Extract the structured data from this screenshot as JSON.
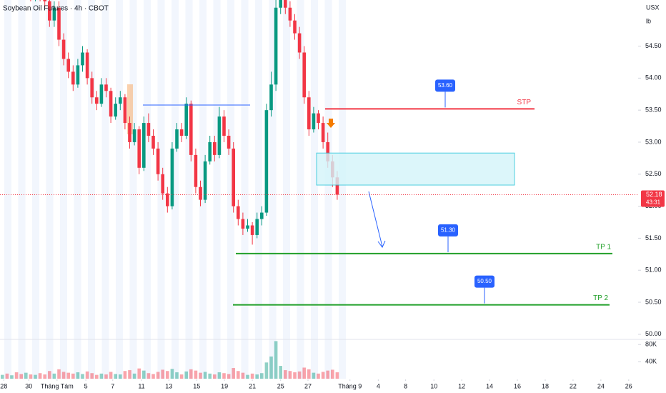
{
  "chart_data": {
    "type": "candlestick",
    "title": "Soybean Oil Futures · 4h · CBOT",
    "currency": "USX",
    "unit": "lb",
    "up_color": "#089981",
    "down_color": "#f23645",
    "open": [
      55.5,
      55.6,
      55.5,
      55.7,
      55.6,
      55.4,
      55.5,
      55.3,
      55.4,
      55.3,
      55.2,
      54.9,
      55.1,
      54.6,
      54.3,
      54.1,
      53.9,
      54.2,
      54.4,
      54.0,
      53.7,
      53.6,
      53.9,
      53.8,
      53.4,
      53.6,
      53.7,
      53.3,
      53.0,
      53.2,
      52.6,
      53.3,
      53.1,
      52.9,
      52.5,
      52.2,
      52.0,
      52.9,
      53.2,
      53.1,
      53.6,
      52.8,
      52.3,
      52.1,
      52.7,
      53.0,
      52.8,
      53.4,
      53.1,
      52.9,
      52.0,
      51.8,
      51.65,
      51.7,
      51.55,
      51.8,
      51.9,
      53.5,
      53.9,
      55.1,
      55.25,
      55.1,
      54.9,
      54.7,
      54.4,
      53.7,
      53.2,
      53.45,
      53.3,
      53.0,
      52.7,
      52.45
    ],
    "high": [
      55.7,
      55.7,
      55.8,
      55.8,
      55.7,
      55.6,
      55.6,
      55.5,
      55.5,
      55.4,
      55.3,
      55.2,
      55.2,
      54.7,
      54.4,
      54.2,
      54.3,
      54.5,
      54.45,
      54.1,
      53.8,
      54.0,
      54.0,
      53.85,
      53.7,
      53.8,
      53.75,
      53.4,
      53.3,
      53.25,
      53.4,
      53.45,
      53.2,
      53.0,
      52.6,
      52.3,
      53.0,
      53.3,
      53.3,
      53.7,
      53.65,
      52.9,
      52.4,
      52.8,
      53.1,
      53.1,
      53.55,
      53.5,
      53.2,
      53.0,
      52.1,
      51.9,
      51.8,
      51.75,
      51.9,
      52.0,
      53.6,
      54.1,
      55.3,
      55.5,
      55.35,
      55.2,
      55.0,
      54.8,
      54.5,
      53.8,
      53.55,
      53.5,
      53.4,
      53.15,
      52.8,
      52.55
    ],
    "low": [
      55.4,
      55.4,
      55.4,
      55.5,
      55.3,
      55.3,
      55.2,
      55.2,
      55.2,
      55.1,
      54.8,
      54.8,
      54.5,
      54.2,
      54.0,
      53.8,
      53.85,
      54.1,
      53.9,
      53.6,
      53.5,
      53.55,
      53.7,
      53.3,
      53.35,
      53.5,
      53.2,
      52.9,
      52.95,
      52.5,
      52.55,
      53.0,
      52.8,
      52.4,
      52.1,
      51.9,
      51.95,
      52.85,
      53.0,
      53.05,
      52.7,
      52.2,
      52.0,
      52.05,
      52.65,
      52.7,
      52.75,
      53.0,
      52.8,
      51.9,
      51.7,
      51.55,
      51.6,
      51.4,
      51.5,
      51.7,
      51.85,
      53.4,
      53.8,
      55.0,
      55.0,
      54.8,
      54.6,
      54.3,
      53.6,
      53.1,
      53.15,
      53.2,
      52.9,
      52.6,
      52.3,
      52.1
    ],
    "close": [
      55.6,
      55.5,
      55.7,
      55.6,
      55.4,
      55.5,
      55.3,
      55.4,
      55.3,
      55.2,
      54.9,
      55.1,
      54.6,
      54.3,
      54.1,
      53.9,
      54.2,
      54.4,
      54.0,
      53.7,
      53.6,
      53.9,
      53.8,
      53.4,
      53.6,
      53.7,
      53.3,
      53.0,
      53.2,
      52.6,
      53.3,
      53.1,
      52.9,
      52.5,
      52.2,
      52.0,
      52.9,
      53.2,
      53.1,
      53.6,
      52.8,
      52.3,
      52.1,
      52.7,
      53.0,
      52.8,
      53.4,
      53.1,
      52.9,
      52.0,
      51.8,
      51.65,
      51.7,
      51.55,
      51.8,
      51.9,
      53.5,
      53.9,
      55.1,
      55.25,
      55.1,
      54.9,
      54.7,
      54.4,
      53.7,
      53.2,
      53.45,
      53.3,
      53.0,
      52.7,
      52.45,
      52.18
    ],
    "volume": [
      9000,
      12000,
      8000,
      15000,
      11000,
      14000,
      10000,
      9000,
      13000,
      10000,
      18000,
      12000,
      22000,
      16000,
      14000,
      12000,
      15000,
      11000,
      17000,
      13000,
      9000,
      12000,
      10000,
      16000,
      11000,
      10000,
      18000,
      20000,
      12000,
      24000,
      19000,
      13000,
      11000,
      16000,
      21000,
      18000,
      23000,
      15000,
      10000,
      17000,
      22000,
      19000,
      14000,
      16000,
      12000,
      10000,
      15000,
      13000,
      11000,
      25000,
      18000,
      14000,
      9000,
      12000,
      10000,
      13000,
      38000,
      52000,
      88000,
      30000,
      20000,
      18000,
      15000,
      17000,
      26000,
      22000,
      14000,
      12000,
      16000,
      19000,
      21000,
      15000
    ],
    "xlim": [
      0,
      135.3
    ],
    "xticks": [
      {
        "value": 0.8,
        "label": "28"
      },
      {
        "value": 6.1,
        "label": "30"
      },
      {
        "value": 12.1,
        "label": "Tháng Tám"
      },
      {
        "value": 18.2,
        "label": "5"
      },
      {
        "value": 23.9,
        "label": "7"
      },
      {
        "value": 30,
        "label": "11"
      },
      {
        "value": 35.8,
        "label": "13"
      },
      {
        "value": 41.7,
        "label": "15"
      },
      {
        "value": 47.6,
        "label": "19"
      },
      {
        "value": 53.5,
        "label": "21"
      },
      {
        "value": 59.5,
        "label": "25"
      },
      {
        "value": 65.3,
        "label": "27"
      },
      {
        "value": 74.2,
        "label": "Tháng 9"
      },
      {
        "value": 80.2,
        "label": "4"
      },
      {
        "value": 86,
        "label": "8"
      },
      {
        "value": 92,
        "label": "10"
      },
      {
        "value": 97.9,
        "label": "12"
      },
      {
        "value": 103.8,
        "label": "14"
      },
      {
        "value": 109.7,
        "label": "16"
      },
      {
        "value": 115.6,
        "label": "18"
      },
      {
        "value": 121.5,
        "label": "22"
      },
      {
        "value": 127.4,
        "label": "24"
      },
      {
        "value": 133.3,
        "label": "26"
      }
    ],
    "ylim": [
      49.92,
      55.22
    ],
    "yticks": [
      {
        "value": 50,
        "label": "50.00"
      },
      {
        "value": 50.5,
        "label": "50.50"
      },
      {
        "value": 51,
        "label": "51.00"
      },
      {
        "value": 51.5,
        "label": "51.50"
      },
      {
        "value": 52,
        "label": "52.00"
      },
      {
        "value": 52.5,
        "label": "52.50"
      },
      {
        "value": 53,
        "label": "53.00"
      },
      {
        "value": 53.5,
        "label": "53.50"
      },
      {
        "value": 54,
        "label": "54.00"
      },
      {
        "value": 54.5,
        "label": "54.50"
      }
    ],
    "volume_ylim": [
      0,
      92000
    ],
    "volume_yticks": [
      {
        "value": 40000,
        "label": "40K"
      },
      {
        "value": 80000,
        "label": "80K"
      }
    ],
    "last_price": 52.18,
    "countdown": "43:31",
    "resistance": 53.58,
    "zone": [
      52.33,
      52.83
    ],
    "levels": [
      {
        "label": "STP",
        "price": 53.52,
        "callout": "53.60",
        "color": "#f23645"
      },
      {
        "label": "TP 1",
        "price": 51.26,
        "callout": "51.30",
        "color": "#22a02a"
      },
      {
        "label": "TP 2",
        "price": 50.46,
        "callout": "50.50",
        "color": "#22a02a"
      }
    ]
  }
}
